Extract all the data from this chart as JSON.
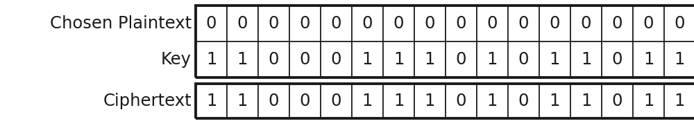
{
  "plaintext": [
    0,
    0,
    0,
    0,
    0,
    0,
    0,
    0,
    0,
    0,
    0,
    0,
    0,
    0,
    0,
    0
  ],
  "key": [
    1,
    1,
    0,
    0,
    0,
    1,
    1,
    1,
    0,
    1,
    0,
    1,
    1,
    0,
    1,
    1
  ],
  "ciphertext": [
    1,
    1,
    0,
    0,
    0,
    1,
    1,
    1,
    0,
    1,
    0,
    1,
    1,
    0,
    1,
    1
  ],
  "label_plaintext": "Chosen Plaintext",
  "label_key": "Key",
  "label_ciphertext": "Ciphertext",
  "background_color": "#ffffff",
  "text_color": "#1a1a1a",
  "cell_fill": "#ffffff",
  "cell_edge": "#1a1a1a",
  "label_fontsize": 17.5,
  "cell_fontsize": 17.5,
  "fig_width": 10.0,
  "fig_height": 1.85,
  "dpi": 100
}
